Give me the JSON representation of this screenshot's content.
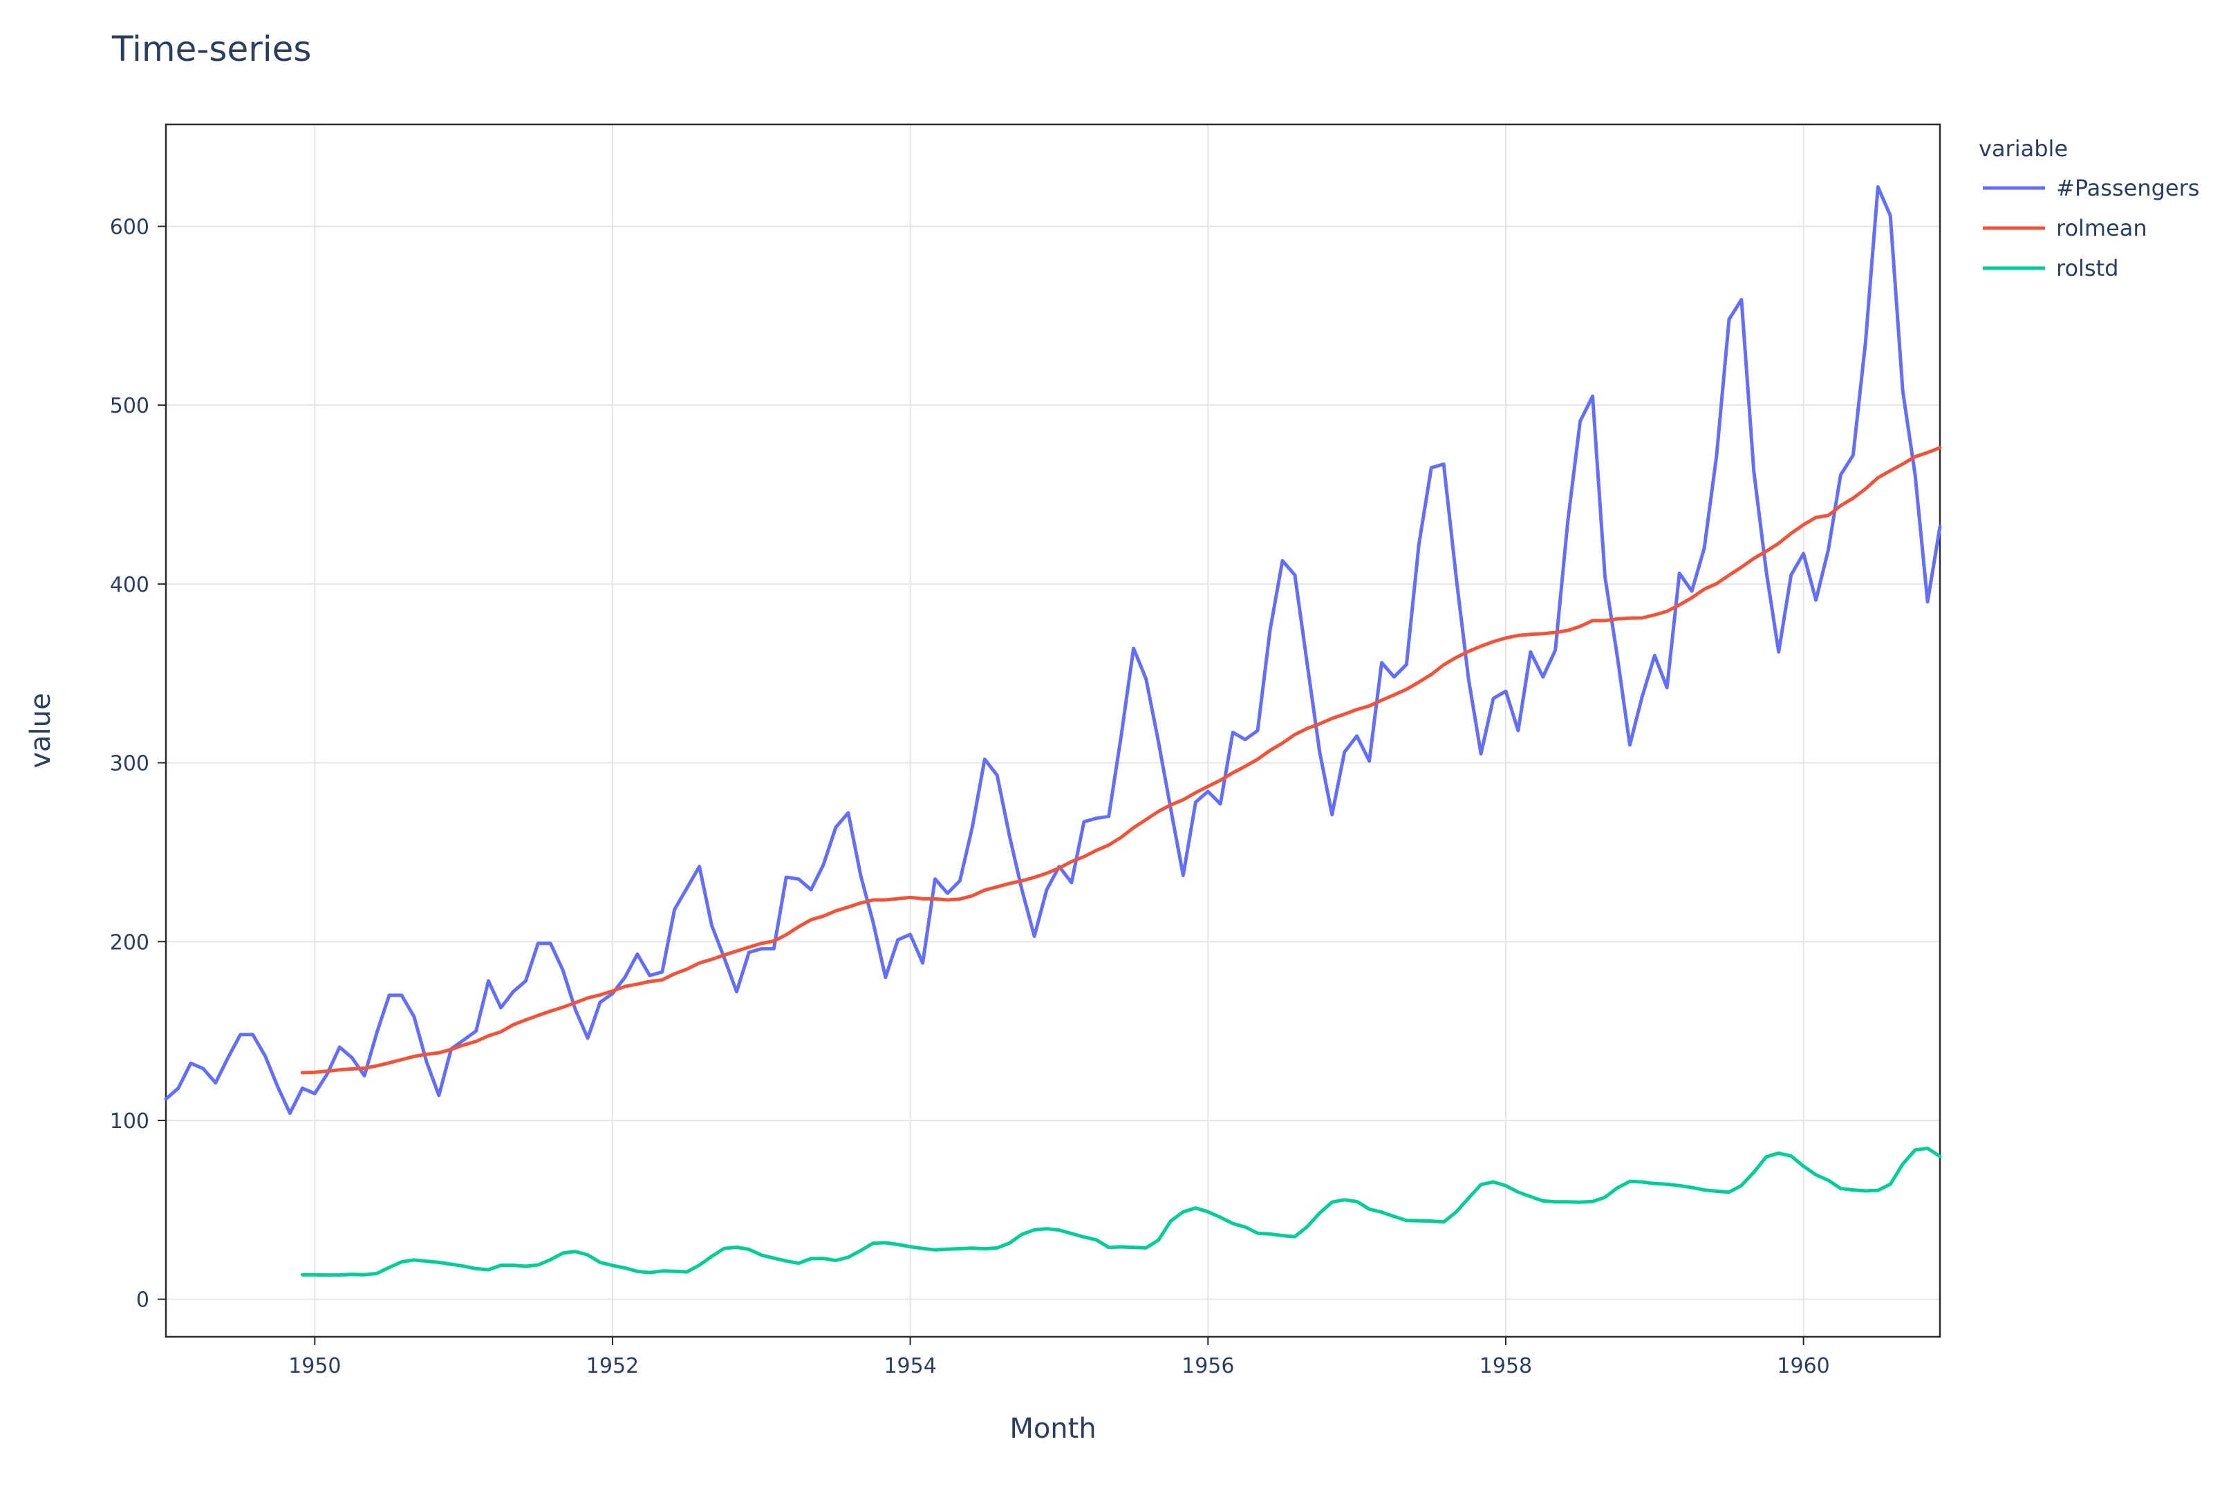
{
  "chart_data": {
    "type": "line",
    "title": "Time-series",
    "xlabel": "Month",
    "ylabel": "value",
    "xlim": [
      "1949-01",
      "1960-12"
    ],
    "ylim": [
      -21,
      657
    ],
    "x_ticks": [
      "1950",
      "1952",
      "1954",
      "1956",
      "1958",
      "1960"
    ],
    "y_ticks": [
      "0",
      "100",
      "200",
      "300",
      "400",
      "500",
      "600"
    ],
    "grid": true,
    "legend": {
      "title": "variable",
      "placement": "top-right"
    },
    "x": [
      "1949-01",
      "1949-02",
      "1949-03",
      "1949-04",
      "1949-05",
      "1949-06",
      "1949-07",
      "1949-08",
      "1949-09",
      "1949-10",
      "1949-11",
      "1949-12",
      "1950-01",
      "1950-02",
      "1950-03",
      "1950-04",
      "1950-05",
      "1950-06",
      "1950-07",
      "1950-08",
      "1950-09",
      "1950-10",
      "1950-11",
      "1950-12",
      "1951-01",
      "1951-02",
      "1951-03",
      "1951-04",
      "1951-05",
      "1951-06",
      "1951-07",
      "1951-08",
      "1951-09",
      "1951-10",
      "1951-11",
      "1951-12",
      "1952-01",
      "1952-02",
      "1952-03",
      "1952-04",
      "1952-05",
      "1952-06",
      "1952-07",
      "1952-08",
      "1952-09",
      "1952-10",
      "1952-11",
      "1952-12",
      "1953-01",
      "1953-02",
      "1953-03",
      "1953-04",
      "1953-05",
      "1953-06",
      "1953-07",
      "1953-08",
      "1953-09",
      "1953-10",
      "1953-11",
      "1953-12",
      "1954-01",
      "1954-02",
      "1954-03",
      "1954-04",
      "1954-05",
      "1954-06",
      "1954-07",
      "1954-08",
      "1954-09",
      "1954-10",
      "1954-11",
      "1954-12",
      "1955-01",
      "1955-02",
      "1955-03",
      "1955-04",
      "1955-05",
      "1955-06",
      "1955-07",
      "1955-08",
      "1955-09",
      "1955-10",
      "1955-11",
      "1955-12",
      "1956-01",
      "1956-02",
      "1956-03",
      "1956-04",
      "1956-05",
      "1956-06",
      "1956-07",
      "1956-08",
      "1956-09",
      "1956-10",
      "1956-11",
      "1956-12",
      "1957-01",
      "1957-02",
      "1957-03",
      "1957-04",
      "1957-05",
      "1957-06",
      "1957-07",
      "1957-08",
      "1957-09",
      "1957-10",
      "1957-11",
      "1957-12",
      "1958-01",
      "1958-02",
      "1958-03",
      "1958-04",
      "1958-05",
      "1958-06",
      "1958-07",
      "1958-08",
      "1958-09",
      "1958-10",
      "1958-11",
      "1958-12",
      "1959-01",
      "1959-02",
      "1959-03",
      "1959-04",
      "1959-05",
      "1959-06",
      "1959-07",
      "1959-08",
      "1959-09",
      "1959-10",
      "1959-11",
      "1959-12",
      "1960-01",
      "1960-02",
      "1960-03",
      "1960-04",
      "1960-05",
      "1960-06",
      "1960-07",
      "1960-08",
      "1960-09",
      "1960-10",
      "1960-11",
      "1960-12"
    ],
    "series": [
      {
        "name": "#Passengers",
        "color": "#636efa",
        "values": [
          112,
          118,
          132,
          129,
          121,
          135,
          148,
          148,
          136,
          119,
          104,
          118,
          115,
          126,
          141,
          135,
          125,
          149,
          170,
          170,
          158,
          133,
          114,
          140,
          145,
          150,
          178,
          163,
          172,
          178,
          199,
          199,
          184,
          162,
          146,
          166,
          171,
          180,
          193,
          181,
          183,
          218,
          230,
          242,
          209,
          191,
          172,
          194,
          196,
          196,
          236,
          235,
          229,
          243,
          264,
          272,
          237,
          211,
          180,
          201,
          204,
          188,
          235,
          227,
          234,
          264,
          302,
          293,
          259,
          229,
          203,
          229,
          242,
          233,
          267,
          269,
          270,
          315,
          364,
          347,
          312,
          274,
          237,
          278,
          284,
          277,
          317,
          313,
          318,
          374,
          413,
          405,
          355,
          306,
          271,
          306,
          315,
          301,
          356,
          348,
          355,
          422,
          465,
          467,
          404,
          347,
          305,
          336,
          340,
          318,
          362,
          348,
          363,
          435,
          491,
          505,
          404,
          359,
          310,
          337,
          360,
          342,
          406,
          396,
          420,
          472,
          548,
          559,
          463,
          407,
          362,
          405,
          417,
          391,
          419,
          461,
          472,
          535,
          622,
          606,
          508,
          461,
          390,
          432
        ]
      },
      {
        "name": "rolmean",
        "color": "#ef553b",
        "values": [
          null,
          null,
          null,
          null,
          null,
          null,
          null,
          null,
          null,
          null,
          null,
          126.7,
          126.9,
          127.6,
          128.3,
          128.8,
          129.2,
          130.5,
          132.2,
          134.0,
          135.8,
          137.0,
          137.8,
          139.7,
          142.2,
          144.2,
          147.3,
          149.6,
          153.5,
          156.2,
          158.7,
          161.1,
          163.3,
          165.8,
          168.5,
          170.2,
          172.4,
          174.9,
          176.2,
          177.7,
          178.6,
          182.0,
          184.6,
          188.0,
          190.1,
          192.5,
          194.7,
          196.9,
          199.0,
          200.3,
          203.8,
          208.3,
          212.2,
          214.3,
          217.2,
          219.3,
          221.6,
          223.3,
          223.3,
          224.0,
          224.7,
          224.0,
          223.9,
          223.3,
          223.8,
          225.6,
          228.8,
          230.6,
          232.5,
          234.0,
          235.9,
          238.2,
          241.1,
          244.8,
          247.5,
          251.0,
          254.0,
          258.3,
          263.7,
          268.2,
          272.8,
          276.4,
          279.3,
          283.3,
          286.8,
          290.2,
          294.4,
          298.0,
          302.0,
          306.9,
          311.0,
          315.8,
          319.2,
          321.8,
          324.8,
          327.2,
          329.8,
          331.8,
          335.0,
          338.0,
          341.1,
          345.1,
          349.4,
          354.8,
          358.9,
          362.3,
          365.2,
          367.7,
          369.8,
          371.2,
          371.8,
          372.2,
          372.9,
          374.0,
          376.3,
          379.5,
          379.5,
          380.5,
          380.9,
          381.0,
          382.7,
          384.7,
          388.3,
          392.3,
          397.1,
          400.2,
          404.9,
          409.4,
          414.3,
          418.3,
          422.7,
          428.3,
          433.1,
          437.2,
          438.3,
          443.8,
          448.0,
          453.2,
          459.4,
          463.3,
          467.1,
          471.2,
          473.5,
          476.2
        ]
      },
      {
        "name": "rolstd",
        "color": "#00cc96",
        "values": [
          null,
          null,
          null,
          null,
          null,
          null,
          null,
          null,
          null,
          null,
          null,
          13.7,
          13.7,
          13.5,
          13.6,
          13.9,
          13.7,
          14.4,
          17.8,
          20.9,
          22.0,
          21.3,
          20.6,
          19.6,
          18.5,
          17.1,
          16.5,
          19.0,
          19.0,
          18.4,
          19.2,
          22.1,
          25.8,
          26.7,
          24.8,
          20.6,
          18.9,
          17.5,
          15.6,
          14.9,
          15.8,
          15.6,
          15.3,
          19.1,
          24.0,
          28.4,
          29.1,
          27.9,
          24.7,
          23.0,
          21.4,
          20.1,
          22.7,
          22.8,
          21.7,
          23.5,
          27.2,
          31.3,
          31.6,
          30.6,
          29.4,
          28.4,
          27.6,
          28.0,
          28.3,
          28.6,
          28.2,
          28.7,
          31.4,
          36.3,
          38.8,
          39.4,
          38.7,
          36.7,
          34.8,
          33.2,
          29.0,
          29.3,
          29.0,
          28.7,
          33.0,
          43.8,
          48.9,
          51.0,
          48.9,
          45.8,
          42.3,
          40.4,
          36.9,
          36.5,
          35.6,
          35.0,
          40.6,
          48.2,
          54.3,
          55.6,
          54.6,
          50.4,
          48.7,
          46.3,
          44.0,
          43.9,
          43.7,
          43.2,
          48.8,
          56.5,
          64.1,
          65.6,
          63.5,
          59.9,
          57.4,
          55.0,
          54.5,
          54.5,
          54.3,
          54.6,
          57.0,
          62.3,
          65.9,
          65.6,
          64.7,
          64.3,
          63.5,
          62.5,
          61.1,
          60.4,
          59.9,
          63.6,
          71.0,
          79.6,
          81.7,
          80.1,
          74.4,
          69.6,
          66.5,
          61.9,
          61.1,
          60.6,
          60.9,
          64.3,
          75.6,
          83.5,
          84.4,
          79.9
        ]
      }
    ]
  }
}
